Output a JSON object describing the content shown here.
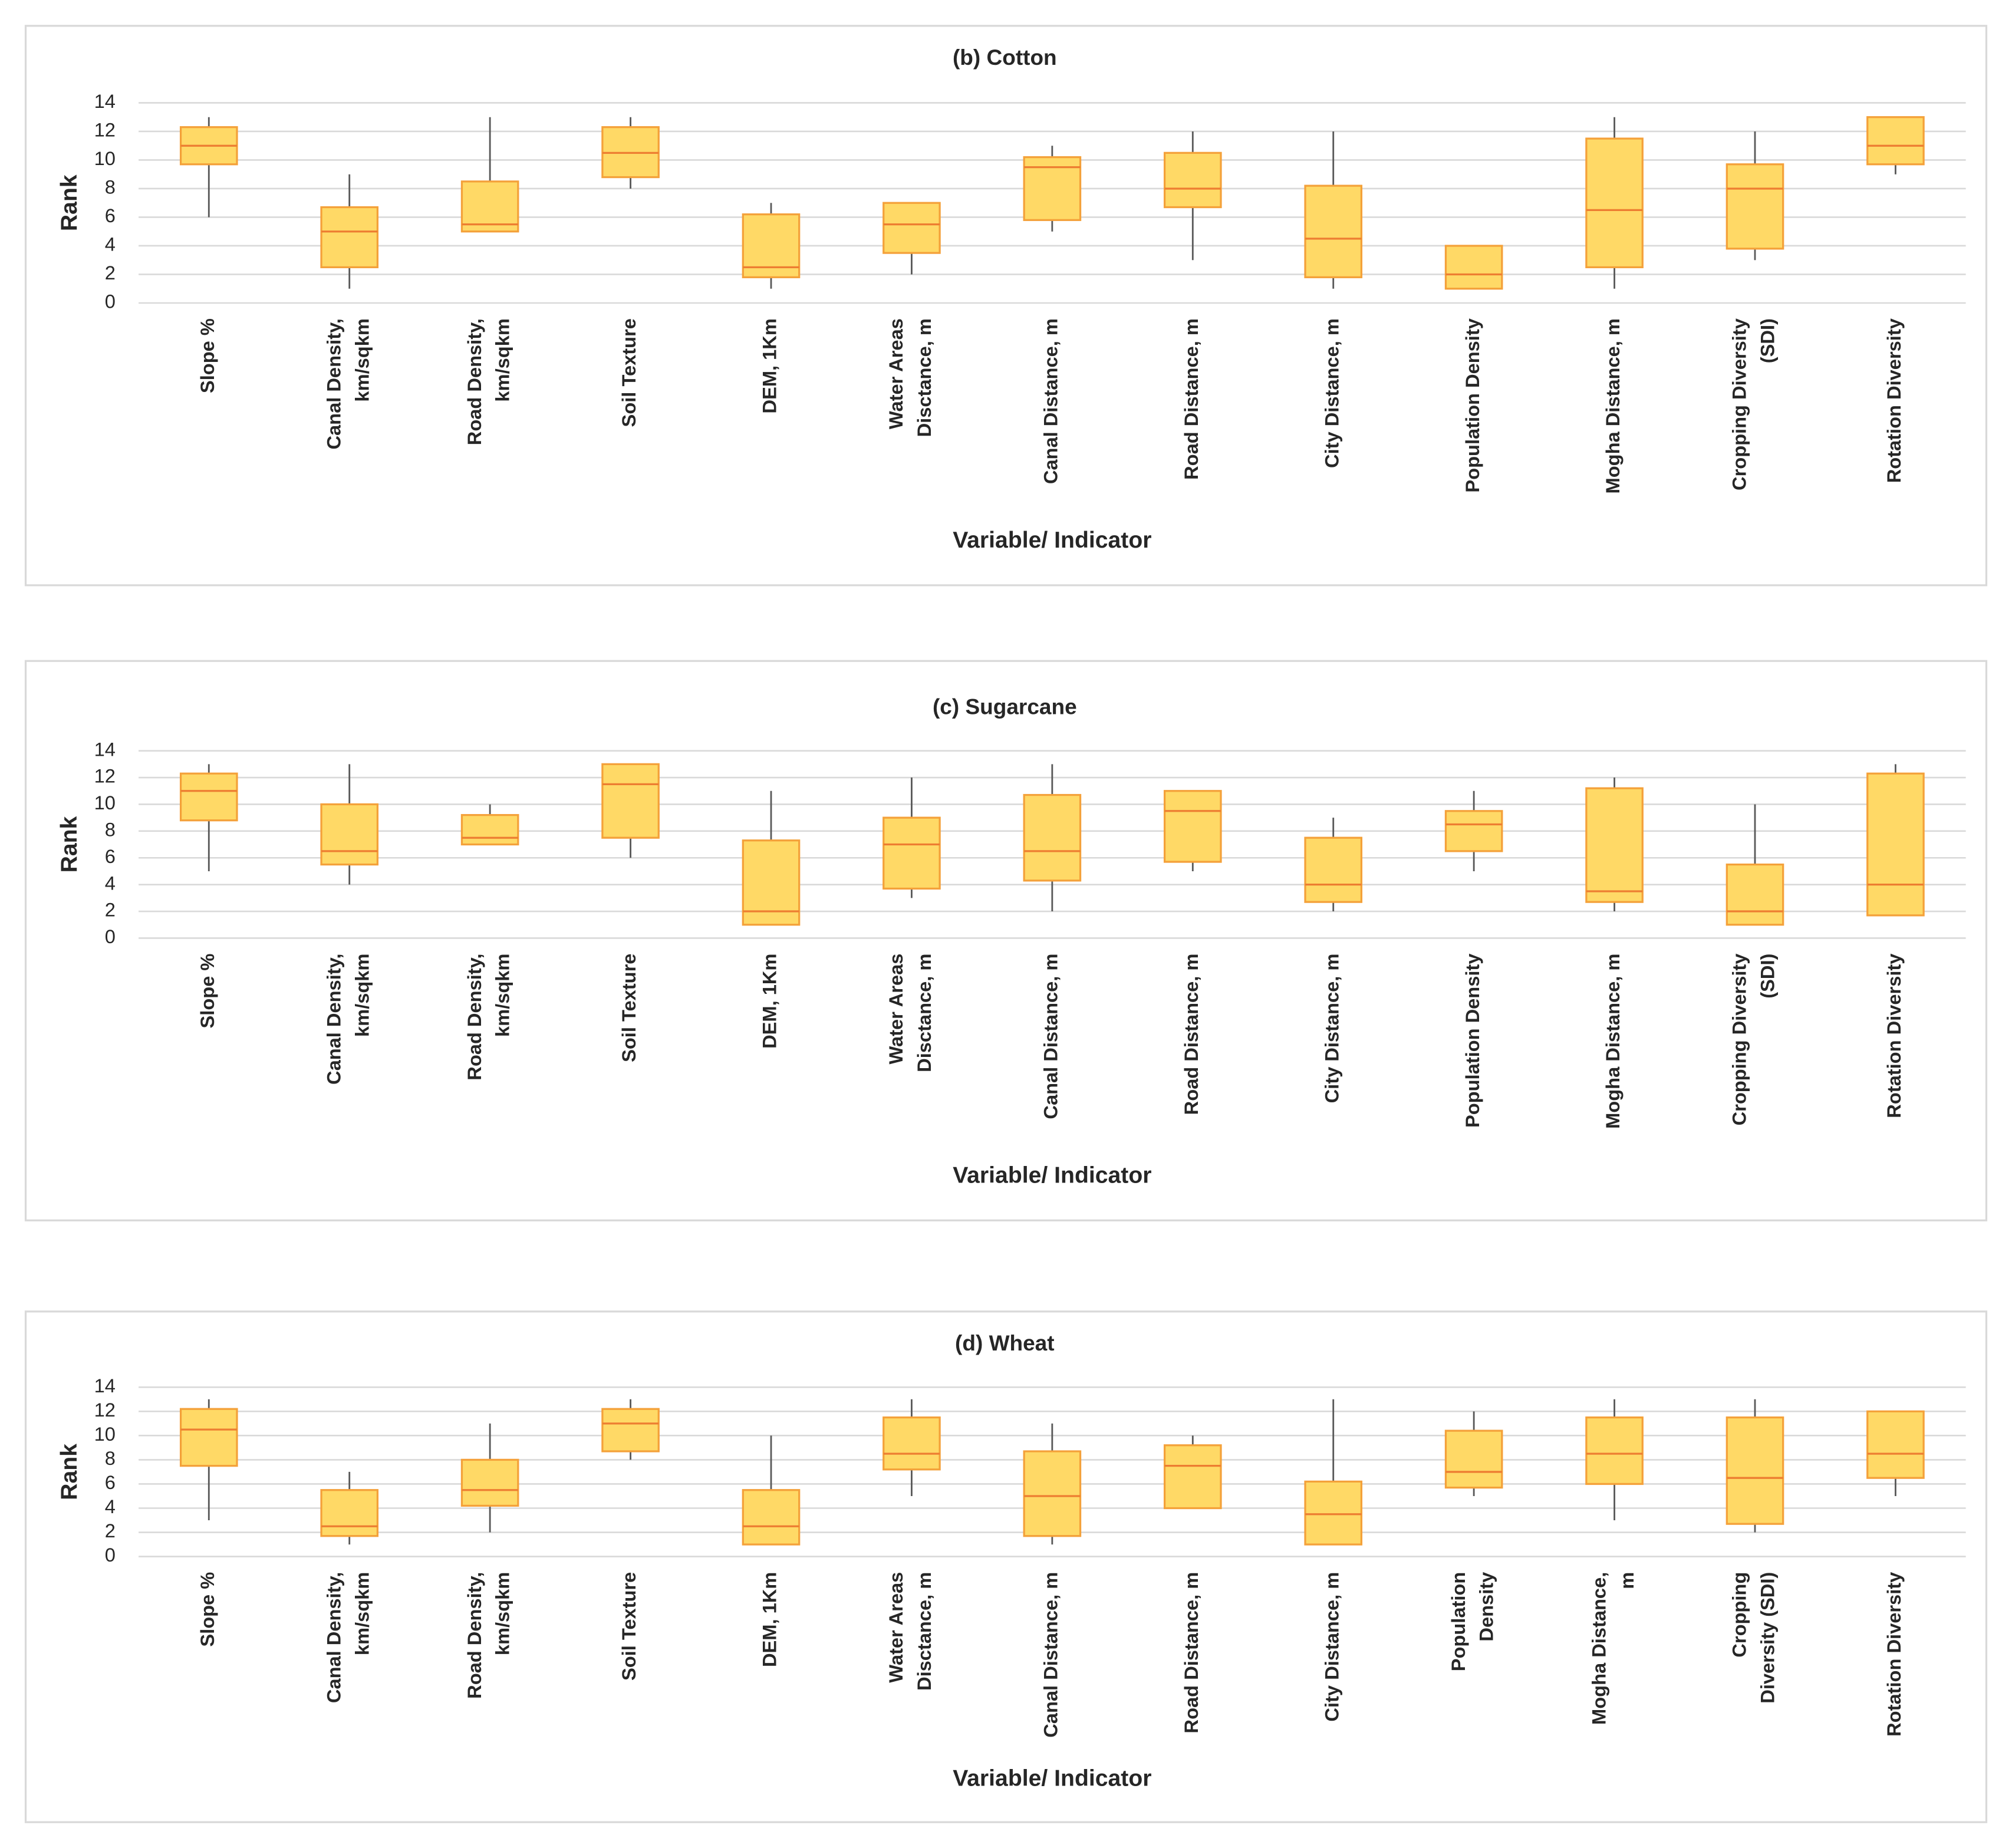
{
  "chart_data": [
    {
      "type": "box",
      "title": "(b) Cotton",
      "x_label": "Variable/ Indicator",
      "y_label": "Rank",
      "categories": [
        [
          "Slope %"
        ],
        [
          "Canal Density,",
          "km/sqkm"
        ],
        [
          "Road Density,",
          "km/sqkm"
        ],
        [
          "Soil Texture"
        ],
        [
          "DEM, 1Km"
        ],
        [
          "Water Areas",
          "Disctance, m"
        ],
        [
          "Canal Distance, m"
        ],
        [
          "Road Distance, m"
        ],
        [
          "City Distance, m"
        ],
        [
          "Population Density"
        ],
        [
          "Mogha Distance, m"
        ],
        [
          "Cropping Diversity",
          "(SDI)"
        ],
        [
          "Rotation Diversity"
        ]
      ],
      "boxes": [
        {
          "min": 6,
          "q1": 9.7,
          "median": 11,
          "q3": 12.3,
          "max": 13
        },
        {
          "min": 1,
          "q1": 2.5,
          "median": 5,
          "q3": 6.7,
          "max": 9
        },
        {
          "min": 5,
          "q1": 5,
          "median": 5.5,
          "q3": 8.5,
          "max": 13
        },
        {
          "min": 8,
          "q1": 8.8,
          "median": 10.5,
          "q3": 12.3,
          "max": 13
        },
        {
          "min": 1,
          "q1": 1.8,
          "median": 2.5,
          "q3": 6.2,
          "max": 7
        },
        {
          "min": 2,
          "q1": 3.5,
          "median": 5.5,
          "q3": 7,
          "max": 7
        },
        {
          "min": 5,
          "q1": 5.8,
          "median": 9.5,
          "q3": 10.2,
          "max": 11
        },
        {
          "min": 3,
          "q1": 6.7,
          "median": 8,
          "q3": 10.5,
          "max": 12
        },
        {
          "min": 1,
          "q1": 1.8,
          "median": 4.5,
          "q3": 8.2,
          "max": 12
        },
        {
          "min": 1,
          "q1": 1,
          "median": 2,
          "q3": 4,
          "max": 4
        },
        {
          "min": 1,
          "q1": 2.5,
          "median": 6.5,
          "q3": 11.5,
          "max": 13
        },
        {
          "min": 3,
          "q1": 3.8,
          "median": 8,
          "q3": 9.7,
          "max": 12
        },
        {
          "min": 9,
          "q1": 9.7,
          "median": 11,
          "q3": 13,
          "max": 13
        }
      ],
      "ylim": [
        0,
        14
      ],
      "yticks": [
        0,
        2,
        4,
        6,
        8,
        10,
        12,
        14
      ],
      "grid": true,
      "box_color": "#ffd966",
      "edge_color": "#f4a13a",
      "median_color": "#ed7d31",
      "whisker_color": "#595959"
    },
    {
      "type": "box",
      "title": "(c) Sugarcane",
      "x_label": "Variable/ Indicator",
      "y_label": "Rank",
      "categories": [
        [
          "Slope %"
        ],
        [
          "Canal Density,",
          "km/sqkm"
        ],
        [
          "Road Density,",
          "km/sqkm"
        ],
        [
          "Soil Texture"
        ],
        [
          "DEM, 1Km"
        ],
        [
          "Water Areas",
          "Disctance, m"
        ],
        [
          "Canal Distance, m"
        ],
        [
          "Road Distance, m"
        ],
        [
          "City Distance, m"
        ],
        [
          "Population Density"
        ],
        [
          "Mogha Distance, m"
        ],
        [
          "Cropping Diversity",
          "(SDI)"
        ],
        [
          "Rotation Diversity"
        ]
      ],
      "boxes": [
        {
          "min": 5,
          "q1": 8.8,
          "median": 11,
          "q3": 12.3,
          "max": 13
        },
        {
          "min": 4,
          "q1": 5.5,
          "median": 6.5,
          "q3": 10,
          "max": 13
        },
        {
          "min": 7,
          "q1": 7,
          "median": 7.5,
          "q3": 9.2,
          "max": 10
        },
        {
          "min": 6,
          "q1": 7.5,
          "median": 11.5,
          "q3": 13,
          "max": 13
        },
        {
          "min": 1,
          "q1": 1,
          "median": 2,
          "q3": 7.3,
          "max": 11
        },
        {
          "min": 3,
          "q1": 3.7,
          "median": 7,
          "q3": 9,
          "max": 12
        },
        {
          "min": 2,
          "q1": 4.3,
          "median": 6.5,
          "q3": 10.7,
          "max": 13
        },
        {
          "min": 5,
          "q1": 5.7,
          "median": 9.5,
          "q3": 11,
          "max": 11
        },
        {
          "min": 2,
          "q1": 2.7,
          "median": 4,
          "q3": 7.5,
          "max": 9
        },
        {
          "min": 5,
          "q1": 6.5,
          "median": 8.5,
          "q3": 9.5,
          "max": 11
        },
        {
          "min": 2,
          "q1": 2.7,
          "median": 3.5,
          "q3": 11.2,
          "max": 12
        },
        {
          "min": 1,
          "q1": 1,
          "median": 2,
          "q3": 5.5,
          "max": 10
        },
        {
          "min": 1.7,
          "q1": 1.7,
          "median": 4,
          "q3": 12.3,
          "max": 13
        }
      ],
      "ylim": [
        0,
        14
      ],
      "yticks": [
        0,
        2,
        4,
        6,
        8,
        10,
        12,
        14
      ],
      "grid": true,
      "box_color": "#ffd966",
      "edge_color": "#f4a13a",
      "median_color": "#ed7d31",
      "whisker_color": "#595959"
    },
    {
      "type": "box",
      "title": "(d) Wheat",
      "x_label": "Variable/ Indicator",
      "y_label": "Rank",
      "categories": [
        [
          "Slope %"
        ],
        [
          "Canal Density,",
          "km/sqkm"
        ],
        [
          "Road Density,",
          "km/sqkm"
        ],
        [
          "Soil Texture"
        ],
        [
          "DEM, 1Km"
        ],
        [
          "Water Areas",
          "Disctance, m"
        ],
        [
          "Canal Distance, m"
        ],
        [
          "Road Distance, m"
        ],
        [
          "City Distance, m"
        ],
        [
          "Population",
          "Density"
        ],
        [
          "Mogha Distance,",
          "m"
        ],
        [
          "Cropping",
          "Diversity (SDI)"
        ],
        [
          "Rotation Diversity"
        ]
      ],
      "boxes": [
        {
          "min": 3,
          "q1": 7.5,
          "median": 10.5,
          "q3": 12.2,
          "max": 13
        },
        {
          "min": 1,
          "q1": 1.7,
          "median": 2.5,
          "q3": 5.5,
          "max": 7
        },
        {
          "min": 2,
          "q1": 4.2,
          "median": 5.5,
          "q3": 8,
          "max": 11
        },
        {
          "min": 8,
          "q1": 8.7,
          "median": 11,
          "q3": 12.2,
          "max": 13
        },
        {
          "min": 1,
          "q1": 1,
          "median": 2.5,
          "q3": 5.5,
          "max": 10
        },
        {
          "min": 5,
          "q1": 7.2,
          "median": 8.5,
          "q3": 11.5,
          "max": 13
        },
        {
          "min": 1,
          "q1": 1.7,
          "median": 5,
          "q3": 8.7,
          "max": 11
        },
        {
          "min": 4,
          "q1": 4,
          "median": 7.5,
          "q3": 9.2,
          "max": 10
        },
        {
          "min": 1,
          "q1": 1,
          "median": 3.5,
          "q3": 6.2,
          "max": 13
        },
        {
          "min": 5,
          "q1": 5.7,
          "median": 7,
          "q3": 10.4,
          "max": 12
        },
        {
          "min": 3,
          "q1": 6,
          "median": 8.5,
          "q3": 11.5,
          "max": 13
        },
        {
          "min": 2,
          "q1": 2.7,
          "median": 6.5,
          "q3": 11.5,
          "max": 13
        },
        {
          "min": 5,
          "q1": 6.5,
          "median": 8.5,
          "q3": 12,
          "max": 12
        }
      ],
      "ylim": [
        0,
        14
      ],
      "yticks": [
        0,
        2,
        4,
        6,
        8,
        10,
        12,
        14
      ],
      "grid": true,
      "box_color": "#ffd966",
      "edge_color": "#f4a13a",
      "median_color": "#ed7d31",
      "whisker_color": "#595959"
    }
  ]
}
